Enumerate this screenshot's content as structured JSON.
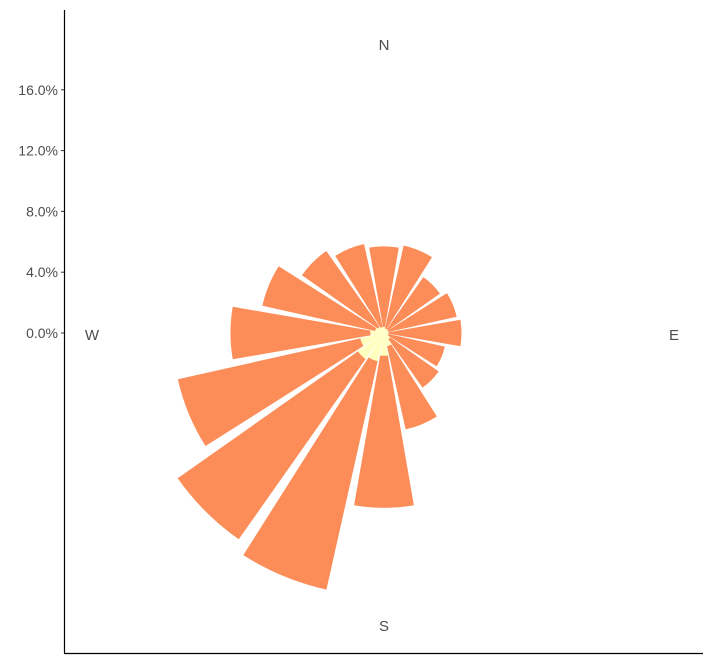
{
  "chart_data": {
    "type": "wind-rose",
    "directions": [
      "N",
      "NNE",
      "NE",
      "ENE",
      "E",
      "ESE",
      "SE",
      "SSE",
      "S",
      "SSW",
      "SW",
      "WSW",
      "W",
      "WNW",
      "NW",
      "NNW"
    ],
    "series": [
      {
        "color": "#FFFFBF",
        "values": [
          0.4,
          0.3,
          0.3,
          0.3,
          0.3,
          0.3,
          0.5,
          0.9,
          1.5,
          1.9,
          2.1,
          1.6,
          0.9,
          0.6,
          0.5,
          0.4
        ]
      },
      {
        "color": "#FC8D59",
        "values": [
          5.3,
          5.6,
          4.2,
          4.6,
          4.8,
          3.8,
          3.9,
          5.6,
          10.0,
          15.4,
          14.5,
          12.3,
          9.2,
          7.6,
          6.1,
          5.6
        ]
      }
    ],
    "radial_axis": {
      "ticks": [
        "0.0%",
        "4.0%",
        "8.0%",
        "12.0%",
        "16.0%"
      ],
      "tick_values": [
        0,
        4,
        8,
        12,
        16
      ],
      "unit": "percent"
    },
    "compass_labels": {
      "north": "N",
      "east": "E",
      "south": "S",
      "west": "W"
    },
    "grid": false,
    "legend": "none"
  }
}
